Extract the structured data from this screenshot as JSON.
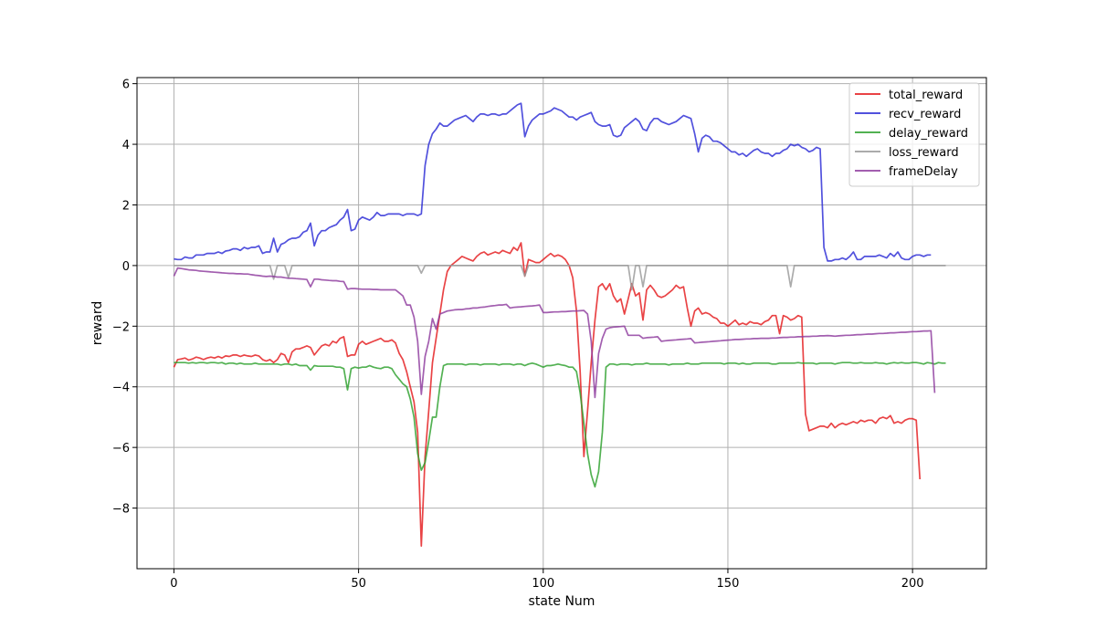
{
  "chart_data": {
    "type": "line",
    "title": "",
    "xlabel": "state Num",
    "ylabel": "reward",
    "xlim": [
      -10,
      220
    ],
    "ylim": [
      -10,
      6.2
    ],
    "x_ticks": [
      0,
      50,
      100,
      150,
      200
    ],
    "y_ticks": [
      -8,
      -6,
      -4,
      -2,
      0,
      2,
      4,
      6
    ],
    "x_tick_labels": [
      "0",
      "50",
      "100",
      "150",
      "200"
    ],
    "y_tick_labels": [
      "−8",
      "−6",
      "−4",
      "−2",
      "0",
      "2",
      "4",
      "6"
    ],
    "grid": true,
    "legend_position": "top-right",
    "x_step": 1,
    "series": [
      {
        "name": "total_reward",
        "color": "#e41a1c",
        "values": [
          -3.35,
          -3.1,
          -3.08,
          -3.05,
          -3.12,
          -3.08,
          -3.02,
          -3.05,
          -3.1,
          -3.05,
          -3.02,
          -3.05,
          -3.0,
          -3.05,
          -2.98,
          -3.0,
          -2.95,
          -2.95,
          -3.0,
          -2.95,
          -2.98,
          -3.0,
          -2.95,
          -2.98,
          -3.1,
          -3.15,
          -3.1,
          -3.2,
          -3.1,
          -2.9,
          -2.95,
          -3.2,
          -2.85,
          -2.75,
          -2.75,
          -2.7,
          -2.65,
          -2.7,
          -2.95,
          -2.8,
          -2.65,
          -2.6,
          -2.65,
          -2.5,
          -2.55,
          -2.4,
          -2.35,
          -3.0,
          -2.95,
          -2.95,
          -2.6,
          -2.5,
          -2.6,
          -2.55,
          -2.5,
          -2.45,
          -2.4,
          -2.5,
          -2.5,
          -2.45,
          -2.55,
          -2.9,
          -3.1,
          -3.5,
          -4.0,
          -4.5,
          -5.5,
          -9.25,
          -6.3,
          -4.8,
          -3.2,
          -2.4,
          -1.6,
          -0.8,
          -0.2,
          0.0,
          0.1,
          0.2,
          0.3,
          0.25,
          0.2,
          0.15,
          0.3,
          0.4,
          0.45,
          0.35,
          0.4,
          0.45,
          0.4,
          0.5,
          0.45,
          0.4,
          0.6,
          0.5,
          0.75,
          -0.35,
          0.2,
          0.15,
          0.1,
          0.1,
          0.2,
          0.3,
          0.4,
          0.3,
          0.35,
          0.3,
          0.2,
          0.0,
          -0.4,
          -1.5,
          -3.5,
          -6.3,
          -4.8,
          -3.2,
          -1.8,
          -0.7,
          -0.6,
          -0.8,
          -0.6,
          -1.0,
          -1.2,
          -1.1,
          -1.6,
          -1.1,
          -0.6,
          -1.0,
          -0.9,
          -1.8,
          -0.8,
          -0.65,
          -0.8,
          -1.0,
          -1.05,
          -1.0,
          -0.9,
          -0.8,
          -0.65,
          -0.75,
          -0.7,
          -1.4,
          -2.0,
          -1.5,
          -1.4,
          -1.6,
          -1.55,
          -1.6,
          -1.7,
          -1.75,
          -1.9,
          -1.9,
          -2.0,
          -1.9,
          -1.8,
          -1.95,
          -1.9,
          -1.95,
          -1.85,
          -1.9,
          -1.9,
          -1.95,
          -1.85,
          -1.8,
          -1.65,
          -1.65,
          -2.25,
          -1.65,
          -1.7,
          -1.8,
          -1.75,
          -1.65,
          -1.7,
          -4.9,
          -5.45,
          -5.4,
          -5.35,
          -5.3,
          -5.3,
          -5.35,
          -5.2,
          -5.35,
          -5.25,
          -5.2,
          -5.25,
          -5.2,
          -5.15,
          -5.2,
          -5.1,
          -5.15,
          -5.1,
          -5.1,
          -5.2,
          -5.05,
          -5.0,
          -5.05,
          -4.95,
          -5.2,
          -5.15,
          -5.2,
          -5.1,
          -5.05,
          -5.05,
          -5.1,
          -7.05
        ]
      },
      {
        "name": "recv_reward",
        "color": "#2b2bd6",
        "values": [
          0.22,
          0.2,
          0.2,
          0.28,
          0.25,
          0.25,
          0.35,
          0.35,
          0.35,
          0.4,
          0.4,
          0.4,
          0.45,
          0.4,
          0.48,
          0.5,
          0.55,
          0.55,
          0.5,
          0.6,
          0.55,
          0.6,
          0.6,
          0.65,
          0.4,
          0.45,
          0.45,
          0.9,
          0.45,
          0.7,
          0.75,
          0.85,
          0.9,
          0.9,
          0.95,
          1.1,
          1.15,
          1.4,
          0.65,
          1.0,
          1.15,
          1.15,
          1.25,
          1.3,
          1.35,
          1.5,
          1.6,
          1.85,
          1.15,
          1.2,
          1.5,
          1.6,
          1.55,
          1.5,
          1.6,
          1.75,
          1.65,
          1.65,
          1.7,
          1.7,
          1.7,
          1.7,
          1.65,
          1.7,
          1.7,
          1.7,
          1.65,
          1.7,
          3.3,
          4.0,
          4.35,
          4.5,
          4.7,
          4.6,
          4.6,
          4.7,
          4.8,
          4.85,
          4.9,
          4.95,
          4.85,
          4.75,
          4.9,
          5.0,
          5.0,
          4.95,
          5.0,
          5.0,
          4.95,
          5.0,
          5.0,
          5.1,
          5.2,
          5.3,
          5.35,
          4.25,
          4.6,
          4.8,
          4.9,
          5.0,
          5.0,
          5.05,
          5.1,
          5.2,
          5.15,
          5.1,
          5.0,
          4.9,
          4.9,
          4.8,
          4.9,
          4.95,
          5.0,
          5.05,
          4.75,
          4.65,
          4.6,
          4.6,
          4.65,
          4.3,
          4.25,
          4.3,
          4.55,
          4.65,
          4.75,
          4.85,
          4.75,
          4.5,
          4.45,
          4.7,
          4.85,
          4.85,
          4.75,
          4.7,
          4.65,
          4.7,
          4.75,
          4.85,
          4.95,
          4.9,
          4.85,
          4.35,
          3.75,
          4.2,
          4.3,
          4.25,
          4.1,
          4.1,
          4.05,
          3.95,
          3.85,
          3.75,
          3.75,
          3.65,
          3.7,
          3.6,
          3.7,
          3.8,
          3.85,
          3.75,
          3.7,
          3.7,
          3.6,
          3.7,
          3.7,
          3.8,
          3.85,
          4.0,
          3.95,
          4.0,
          3.9,
          3.85,
          3.75,
          3.8,
          3.9,
          3.85,
          0.6,
          0.15,
          0.15,
          0.2,
          0.2,
          0.25,
          0.2,
          0.3,
          0.45,
          0.2,
          0.2,
          0.3,
          0.3,
          0.3,
          0.3,
          0.35,
          0.3,
          0.25,
          0.4,
          0.3,
          0.45,
          0.25,
          0.2,
          0.2,
          0.3,
          0.35,
          0.35,
          0.3,
          0.35,
          0.35
        ]
      },
      {
        "name": "delay_reward",
        "color": "#2ca02c",
        "values": [
          -3.2,
          -3.2,
          -3.2,
          -3.2,
          -3.22,
          -3.2,
          -3.22,
          -3.2,
          -3.2,
          -3.22,
          -3.2,
          -3.2,
          -3.22,
          -3.2,
          -3.25,
          -3.22,
          -3.22,
          -3.25,
          -3.22,
          -3.25,
          -3.25,
          -3.25,
          -3.22,
          -3.25,
          -3.25,
          -3.25,
          -3.25,
          -3.25,
          -3.25,
          -3.28,
          -3.25,
          -3.25,
          -3.28,
          -3.25,
          -3.3,
          -3.3,
          -3.3,
          -3.45,
          -3.3,
          -3.32,
          -3.32,
          -3.32,
          -3.32,
          -3.32,
          -3.35,
          -3.35,
          -3.4,
          -4.1,
          -3.4,
          -3.35,
          -3.38,
          -3.35,
          -3.35,
          -3.3,
          -3.35,
          -3.38,
          -3.4,
          -3.35,
          -3.35,
          -3.4,
          -3.6,
          -3.75,
          -3.9,
          -4.0,
          -4.4,
          -5.0,
          -6.2,
          -6.75,
          -6.5,
          -5.8,
          -5.0,
          -5.0,
          -4.0,
          -3.3,
          -3.25,
          -3.25,
          -3.25,
          -3.25,
          -3.25,
          -3.28,
          -3.25,
          -3.25,
          -3.25,
          -3.28,
          -3.25,
          -3.25,
          -3.25,
          -3.25,
          -3.28,
          -3.25,
          -3.25,
          -3.25,
          -3.28,
          -3.25,
          -3.25,
          -3.3,
          -3.25,
          -3.22,
          -3.25,
          -3.3,
          -3.35,
          -3.3,
          -3.3,
          -3.28,
          -3.25,
          -3.28,
          -3.3,
          -3.35,
          -3.35,
          -3.5,
          -4.2,
          -5.2,
          -6.2,
          -6.9,
          -7.3,
          -6.8,
          -5.5,
          -3.35,
          -3.25,
          -3.25,
          -3.28,
          -3.25,
          -3.25,
          -3.25,
          -3.28,
          -3.25,
          -3.25,
          -3.25,
          -3.22,
          -3.25,
          -3.25,
          -3.25,
          -3.25,
          -3.25,
          -3.28,
          -3.25,
          -3.25,
          -3.25,
          -3.25,
          -3.22,
          -3.25,
          -3.25,
          -3.25,
          -3.22,
          -3.22,
          -3.22,
          -3.22,
          -3.22,
          -3.22,
          -3.25,
          -3.22,
          -3.22,
          -3.22,
          -3.25,
          -3.22,
          -3.25,
          -3.25,
          -3.22,
          -3.22,
          -3.22,
          -3.22,
          -3.22,
          -3.25,
          -3.25,
          -3.22,
          -3.22,
          -3.22,
          -3.22,
          -3.22,
          -3.2,
          -3.22,
          -3.22,
          -3.22,
          -3.22,
          -3.25,
          -3.22,
          -3.22,
          -3.22,
          -3.22,
          -3.25,
          -3.22,
          -3.2,
          -3.2,
          -3.2,
          -3.22,
          -3.22,
          -3.2,
          -3.22,
          -3.22,
          -3.22,
          -3.2,
          -3.22,
          -3.22,
          -3.25,
          -3.22,
          -3.2,
          -3.22,
          -3.2,
          -3.22,
          -3.22,
          -3.2,
          -3.2,
          -3.22,
          -3.25,
          -3.2,
          -3.22,
          -3.25,
          -3.2,
          -3.22,
          -3.22
        ]
      },
      {
        "name": "loss_reward",
        "color": "#999999",
        "values": [
          0,
          0,
          0,
          0,
          0,
          0,
          0,
          0,
          0,
          0,
          0,
          0,
          0,
          0,
          0,
          0,
          0,
          0,
          0,
          0,
          0,
          0,
          0,
          0,
          0,
          0,
          0,
          -0.45,
          0,
          0,
          0,
          -0.4,
          0,
          0,
          0,
          0,
          0,
          0,
          0,
          0,
          0,
          0,
          0,
          0,
          0,
          0,
          0,
          0,
          0,
          0,
          0,
          0,
          0,
          0,
          0,
          0,
          0,
          0,
          0,
          0,
          0,
          0,
          0,
          0,
          0,
          0,
          0,
          -0.25,
          0,
          0,
          0,
          0,
          0,
          0,
          0,
          0,
          0,
          0,
          0,
          0,
          0,
          0,
          0,
          0,
          0,
          0,
          0,
          0,
          0,
          0,
          0,
          0,
          0,
          0,
          0,
          -0.35,
          0,
          0,
          0,
          0,
          0,
          0,
          0,
          0,
          0,
          0,
          0,
          0,
          0,
          0,
          0,
          0,
          0,
          0,
          0,
          0,
          0,
          0,
          0,
          0,
          0,
          0,
          0,
          0,
          -0.8,
          0,
          0,
          -0.7,
          0,
          0,
          0,
          0,
          0,
          0,
          0,
          0,
          0,
          0,
          0,
          0,
          0,
          0,
          0,
          0,
          0,
          0,
          0,
          0,
          0,
          0,
          0,
          0,
          0,
          0,
          0,
          0,
          0,
          0,
          0,
          0,
          0,
          0,
          0,
          0,
          0,
          0,
          0,
          -0.7,
          0,
          0,
          0,
          0,
          0,
          0,
          0,
          0,
          0,
          0,
          0,
          0,
          0,
          0,
          0,
          0,
          0,
          0,
          0,
          0,
          0,
          0,
          0,
          0,
          0,
          0,
          0,
          0,
          0,
          0,
          0,
          0,
          0,
          0,
          0,
          0,
          0,
          0,
          0,
          0,
          0,
          0
        ]
      },
      {
        "name": "frameDelay",
        "color": "#8e3a9e",
        "values": [
          -0.35,
          -0.08,
          -0.1,
          -0.12,
          -0.14,
          -0.15,
          -0.16,
          -0.18,
          -0.19,
          -0.2,
          -0.21,
          -0.22,
          -0.23,
          -0.24,
          -0.25,
          -0.26,
          -0.26,
          -0.27,
          -0.27,
          -0.28,
          -0.28,
          -0.3,
          -0.32,
          -0.33,
          -0.35,
          -0.36,
          -0.35,
          -0.36,
          -0.38,
          -0.38,
          -0.4,
          -0.42,
          -0.42,
          -0.43,
          -0.44,
          -0.45,
          -0.46,
          -0.7,
          -0.45,
          -0.45,
          -0.47,
          -0.48,
          -0.49,
          -0.5,
          -0.5,
          -0.52,
          -0.53,
          -0.78,
          -0.76,
          -0.76,
          -0.77,
          -0.78,
          -0.78,
          -0.78,
          -0.79,
          -0.79,
          -0.8,
          -0.8,
          -0.8,
          -0.8,
          -0.8,
          -0.9,
          -1.0,
          -1.3,
          -1.3,
          -1.7,
          -2.5,
          -4.25,
          -3.0,
          -2.5,
          -1.75,
          -2.1,
          -1.6,
          -1.55,
          -1.5,
          -1.48,
          -1.46,
          -1.45,
          -1.45,
          -1.43,
          -1.42,
          -1.4,
          -1.4,
          -1.38,
          -1.37,
          -1.35,
          -1.33,
          -1.32,
          -1.3,
          -1.3,
          -1.28,
          -1.4,
          -1.38,
          -1.37,
          -1.36,
          -1.35,
          -1.34,
          -1.33,
          -1.32,
          -1.3,
          -1.55,
          -1.55,
          -1.54,
          -1.53,
          -1.53,
          -1.52,
          -1.52,
          -1.51,
          -1.5,
          -1.5,
          -1.49,
          -1.48,
          -1.6,
          -2.5,
          -4.35,
          -2.9,
          -2.4,
          -2.1,
          -2.05,
          -2.03,
          -2.02,
          -2.01,
          -2.0,
          -2.3,
          -2.3,
          -2.3,
          -2.3,
          -2.4,
          -2.38,
          -2.37,
          -2.36,
          -2.35,
          -2.5,
          -2.48,
          -2.47,
          -2.46,
          -2.45,
          -2.44,
          -2.43,
          -2.42,
          -2.41,
          -2.55,
          -2.54,
          -2.53,
          -2.52,
          -2.51,
          -2.5,
          -2.49,
          -2.48,
          -2.47,
          -2.46,
          -2.45,
          -2.44,
          -2.44,
          -2.43,
          -2.42,
          -2.42,
          -2.41,
          -2.41,
          -2.4,
          -2.4,
          -2.4,
          -2.39,
          -2.39,
          -2.38,
          -2.37,
          -2.37,
          -2.36,
          -2.36,
          -2.35,
          -2.35,
          -2.34,
          -2.34,
          -2.33,
          -2.33,
          -2.32,
          -2.32,
          -2.31,
          -2.32,
          -2.33,
          -2.32,
          -2.31,
          -2.3,
          -2.3,
          -2.29,
          -2.28,
          -2.28,
          -2.27,
          -2.26,
          -2.26,
          -2.25,
          -2.24,
          -2.24,
          -2.23,
          -2.22,
          -2.22,
          -2.21,
          -2.2,
          -2.2,
          -2.19,
          -2.18,
          -2.18,
          -2.17,
          -2.16,
          -2.16,
          -2.15,
          -4.2
        ]
      }
    ]
  }
}
